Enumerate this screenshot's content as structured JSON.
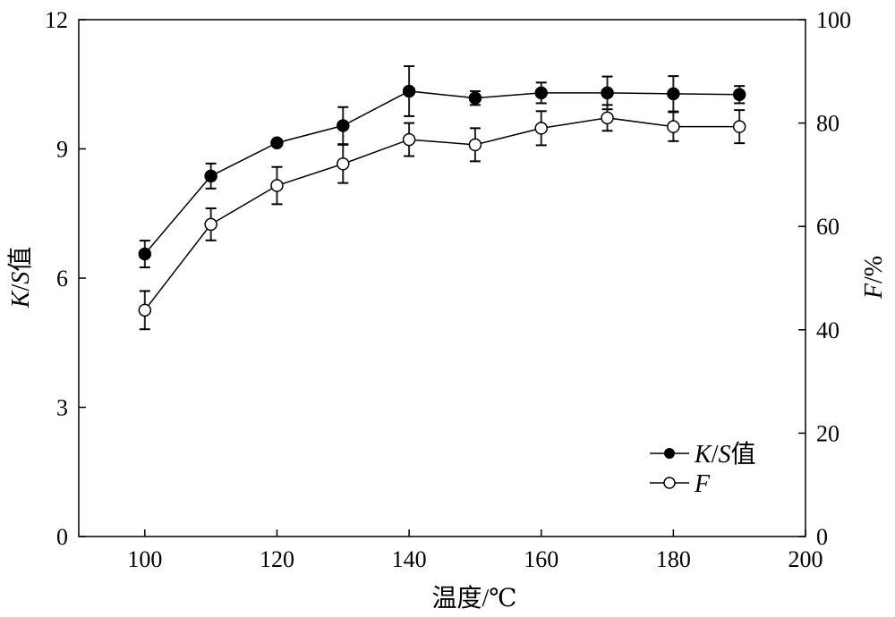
{
  "chart_data": {
    "type": "line",
    "title": "",
    "xlabel": "温度/℃",
    "ylabel": "K/S值",
    "ylabel_parts": {
      "k": "K",
      "slash": "/",
      "s": "S",
      "suffix": "值"
    },
    "y2label": "F/%",
    "y2label_parts": {
      "f": "F",
      "suffix": "/%"
    },
    "xlim": [
      90,
      200
    ],
    "ylim": [
      0,
      12
    ],
    "y2lim": [
      0,
      100
    ],
    "xticks": [
      100,
      120,
      140,
      160,
      180,
      200
    ],
    "yticks": [
      0,
      3,
      6,
      9,
      12
    ],
    "y2ticks": [
      0,
      20,
      40,
      60,
      80,
      100
    ],
    "grid": false,
    "legend_position": "bottom-right",
    "x": [
      100,
      110,
      120,
      130,
      140,
      150,
      160,
      170,
      180,
      190
    ],
    "series": [
      {
        "name": "K/S值",
        "legend_parts": {
          "k": "K",
          "slash": "/",
          "s": "S",
          "suffix": "值"
        },
        "axis": "left",
        "marker": "filled-circle",
        "values": [
          6.56,
          8.37,
          9.14,
          9.54,
          10.34,
          10.18,
          10.3,
          10.3,
          10.28,
          10.26
        ],
        "errors": [
          0.31,
          0.29,
          0.05,
          0.43,
          0.58,
          0.16,
          0.24,
          0.38,
          0.41,
          0.2
        ]
      },
      {
        "name": "F",
        "axis": "right",
        "marker": "open-circle",
        "values": [
          43.8,
          60.4,
          67.9,
          72.1,
          76.8,
          75.8,
          79.0,
          81.0,
          79.3,
          79.3
        ],
        "errors": [
          3.7,
          3.1,
          3.6,
          3.7,
          3.2,
          3.2,
          3.3,
          2.5,
          2.8,
          3.2
        ]
      }
    ]
  }
}
